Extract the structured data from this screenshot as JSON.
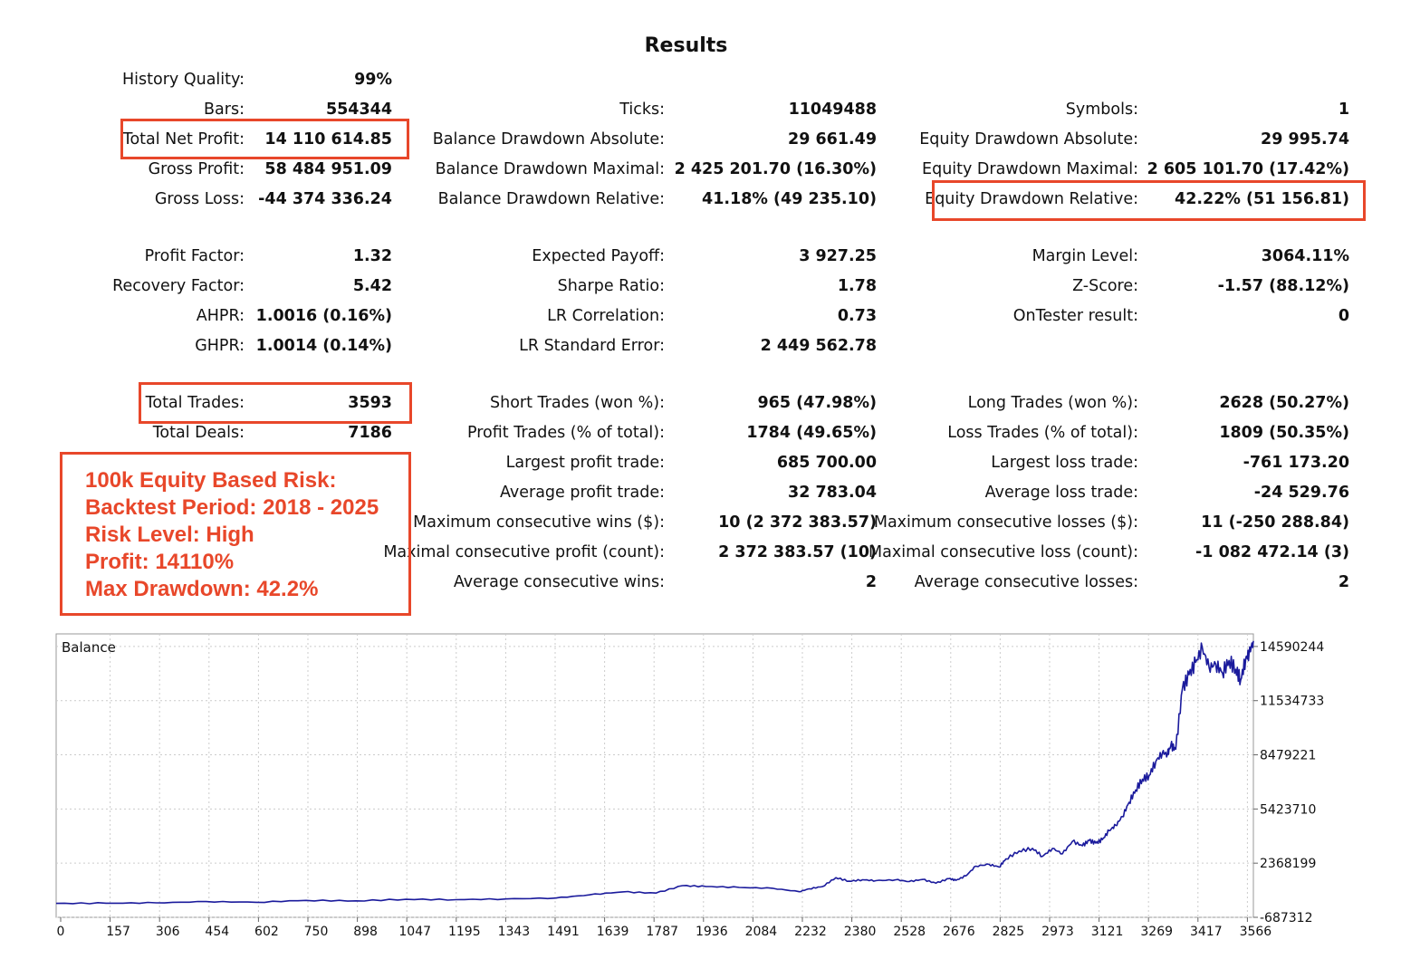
{
  "title": "Results",
  "left_col": {
    "history_quality": {
      "label": "History Quality:",
      "value": "99%"
    },
    "bars": {
      "label": "Bars:",
      "value": "554344"
    },
    "total_net_profit": {
      "label": "Total Net Profit:",
      "value": "14 110 614.85"
    },
    "gross_profit": {
      "label": "Gross Profit:",
      "value": "58 484 951.09"
    },
    "gross_loss": {
      "label": "Gross Loss:",
      "value": "-44 374 336.24"
    },
    "profit_factor": {
      "label": "Profit Factor:",
      "value": "1.32"
    },
    "recovery_factor": {
      "label": "Recovery Factor:",
      "value": "5.42"
    },
    "ahpr": {
      "label": "AHPR:",
      "value": "1.0016 (0.16%)"
    },
    "ghpr": {
      "label": "GHPR:",
      "value": "1.0014 (0.14%)"
    },
    "total_trades": {
      "label": "Total Trades:",
      "value": "3593"
    },
    "total_deals": {
      "label": "Total Deals:",
      "value": "7186"
    }
  },
  "mid_col": {
    "ticks": {
      "label": "Ticks:",
      "value": "11049488"
    },
    "bal_dd_abs": {
      "label": "Balance Drawdown Absolute:",
      "value": "29 661.49"
    },
    "bal_dd_max": {
      "label": "Balance Drawdown Maximal:",
      "value": "2 425 201.70 (16.30%)"
    },
    "bal_dd_rel": {
      "label": "Balance Drawdown Relative:",
      "value": "41.18% (49 235.10)"
    },
    "expected_payoff": {
      "label": "Expected Payoff:",
      "value": "3 927.25"
    },
    "sharpe": {
      "label": "Sharpe Ratio:",
      "value": "1.78"
    },
    "lr_corr": {
      "label": "LR Correlation:",
      "value": "0.73"
    },
    "lr_std": {
      "label": "LR Standard Error:",
      "value": "2 449 562.78"
    },
    "short_trades": {
      "label": "Short Trades (won %):",
      "value": "965 (47.98%)"
    },
    "profit_trades": {
      "label": "Profit Trades (% of total):",
      "value": "1784 (49.65%)"
    },
    "largest_profit": {
      "label": "Largest profit trade:",
      "value": "685 700.00"
    },
    "avg_profit": {
      "label": "Average profit trade:",
      "value": "32 783.04"
    },
    "max_consec_wins": {
      "label": "Maximum consecutive wins ($):",
      "value": "10 (2 372 383.57)"
    },
    "max_consec_profit": {
      "label": "Maximal consecutive profit (count):",
      "value": "2 372 383.57 (10)"
    },
    "avg_consec_wins": {
      "label": "Average consecutive wins:",
      "value": "2"
    }
  },
  "right_col": {
    "symbols": {
      "label": "Symbols:",
      "value": "1"
    },
    "eq_dd_abs": {
      "label": "Equity Drawdown Absolute:",
      "value": "29 995.74"
    },
    "eq_dd_max": {
      "label": "Equity Drawdown Maximal:",
      "value": "2 605 101.70 (17.42%)"
    },
    "eq_dd_rel": {
      "label": "Equity Drawdown Relative:",
      "value": "42.22% (51 156.81)"
    },
    "margin_level": {
      "label": "Margin Level:",
      "value": "3064.11%"
    },
    "z_score": {
      "label": "Z-Score:",
      "value": "-1.57 (88.12%)"
    },
    "ontester": {
      "label": "OnTester result:",
      "value": "0"
    },
    "long_trades": {
      "label": "Long Trades (won %):",
      "value": "2628 (50.27%)"
    },
    "loss_trades": {
      "label": "Loss Trades (% of total):",
      "value": "1809 (50.35%)"
    },
    "largest_loss": {
      "label": "Largest loss trade:",
      "value": "-761 173.20"
    },
    "avg_loss": {
      "label": "Average loss trade:",
      "value": "-24 529.76"
    },
    "max_consec_losses": {
      "label": "Maximum consecutive losses ($):",
      "value": "11 (-250 288.84)"
    },
    "max_consec_loss": {
      "label": "Maximal consecutive loss (count):",
      "value": "-1 082 472.14 (3)"
    },
    "avg_consec_losses": {
      "label": "Average consecutive losses:",
      "value": "2"
    }
  },
  "note": {
    "line1": "100k Equity Based Risk:",
    "line2": "Backtest Period: 2018 - 2025",
    "line3": "Risk Level: High",
    "line4": "Profit: 14110%",
    "line5": "Max Drawdown: 42.2%"
  },
  "colors": {
    "accent": "#e8472a",
    "line": "#1a1a9c",
    "grid": "#cccccc"
  },
  "chart_data": {
    "type": "line",
    "title": "Balance",
    "x_ticks": [
      "0",
      "157",
      "306",
      "454",
      "602",
      "750",
      "898",
      "1047",
      "1195",
      "1343",
      "1491",
      "1639",
      "1787",
      "1936",
      "2084",
      "2232",
      "2380",
      "2528",
      "2676",
      "2825",
      "2973",
      "3121",
      "3269",
      "3417",
      "3566"
    ],
    "y_ticks": [
      "14590244",
      "11534733",
      "8479221",
      "5423710",
      "2368199",
      "-687312"
    ],
    "xlim": [
      0,
      3593
    ],
    "ylim": [
      -687312,
      15300000
    ],
    "series": [
      {
        "name": "Balance",
        "x": [
          0,
          150,
          300,
          450,
          600,
          750,
          900,
          1050,
          1200,
          1350,
          1500,
          1600,
          1700,
          1800,
          1880,
          1950,
          2050,
          2150,
          2230,
          2260,
          2300,
          2340,
          2380,
          2420,
          2460,
          2520,
          2560,
          2600,
          2640,
          2680,
          2700,
          2730,
          2760,
          2800,
          2830,
          2850,
          2890,
          2930,
          2960,
          2990,
          3020,
          3050,
          3080,
          3100,
          3120,
          3140,
          3160,
          3180,
          3200,
          3220,
          3240,
          3260,
          3280,
          3300,
          3320,
          3335,
          3345,
          3360,
          3380,
          3400,
          3420,
          3440,
          3460,
          3480,
          3500,
          3520,
          3540,
          3555,
          3570,
          3580,
          3593
        ],
        "y": [
          100000,
          110000,
          130000,
          200000,
          160000,
          270000,
          240000,
          330000,
          310000,
          350000,
          400000,
          580000,
          750000,
          680000,
          1100000,
          1050000,
          1000000,
          950000,
          760000,
          920000,
          1050000,
          1550000,
          1350000,
          1430000,
          1380000,
          1430000,
          1330000,
          1450000,
          1240000,
          1500000,
          1400000,
          1650000,
          2200000,
          2300000,
          2150000,
          2600000,
          3050000,
          3200000,
          2750000,
          3200000,
          2900000,
          3600000,
          3350000,
          3650000,
          3500000,
          3700000,
          4200000,
          4500000,
          5000000,
          5800000,
          6500000,
          7100000,
          7300000,
          8100000,
          8600000,
          8500000,
          9000000,
          8800000,
          12200000,
          13000000,
          13700000,
          14500000,
          13400000,
          13600000,
          13100000,
          13800000,
          13300000,
          12700000,
          13900000,
          14200000,
          14900000
        ]
      }
    ]
  }
}
